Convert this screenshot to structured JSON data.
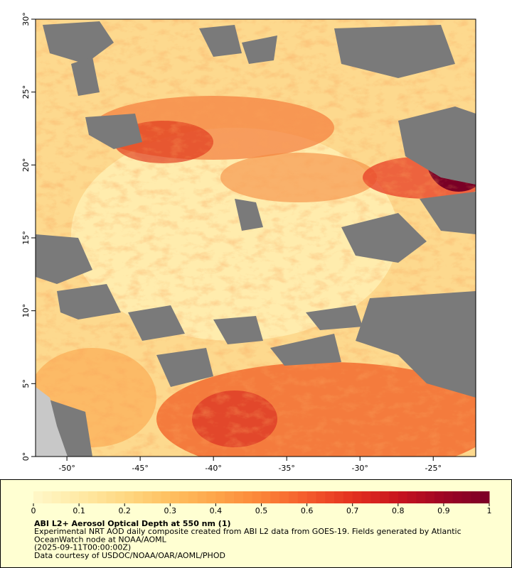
{
  "map": {
    "xlim": [
      -52.14,
      -22.1
    ],
    "ylim": [
      0,
      30
    ],
    "xticks": [
      {
        "value": -50,
        "label": "-50°"
      },
      {
        "value": -45,
        "label": "-45°"
      },
      {
        "value": -40,
        "label": "-40°"
      },
      {
        "value": -35,
        "label": "-35°"
      },
      {
        "value": -30,
        "label": "-30°"
      },
      {
        "value": -25,
        "label": "-25°"
      }
    ],
    "yticks": [
      {
        "value": 0,
        "label": "0°"
      },
      {
        "value": 5,
        "label": "5°"
      },
      {
        "value": 10,
        "label": "10°"
      },
      {
        "value": 15,
        "label": "15°"
      },
      {
        "value": 20,
        "label": "20°"
      },
      {
        "value": 25,
        "label": "25°"
      },
      {
        "value": 30,
        "label": "30°"
      }
    ]
  },
  "colorbar": {
    "lim": [
      0,
      1
    ],
    "ticks": [
      0,
      0.1,
      0.2,
      0.3,
      0.4,
      0.5,
      0.6,
      0.7,
      0.8,
      0.9,
      1
    ],
    "colors": [
      "#fff7c8",
      "#ffeaa6",
      "#fed882",
      "#fec060",
      "#fda54a",
      "#fb8538",
      "#f45b2c",
      "#e3311f",
      "#c8141e",
      "#9e0524",
      "#7a0026"
    ]
  },
  "footer": {
    "title": "ABI L2+ Aerosol Optical Depth at 550 nm (1)",
    "lines": [
      "Experimental NRT AOD daily composite created from ABI L2 data from GOES-19. Fields generated by Atlantic",
      "OceanWatch node at NOAA/AOML",
      "(2025-09-11T00:00:00Z)",
      "Data courtesy of USDOC/NOAA/OAR/AOML/PHOD"
    ]
  }
}
